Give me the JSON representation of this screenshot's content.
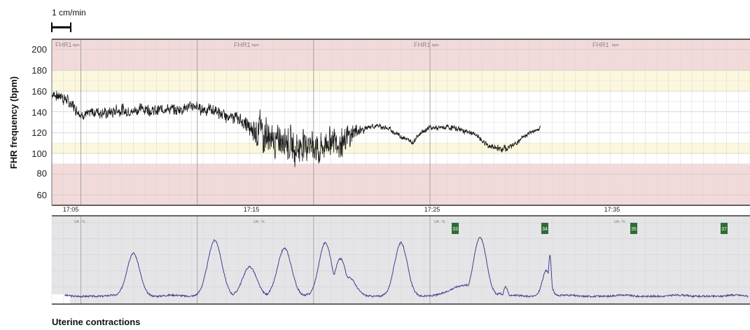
{
  "scale_label": "1 cm/min",
  "fhr_panel": {
    "ylabel": "FHR frequency (bpm)",
    "y_ticks": [
      "60",
      "80",
      "100",
      "120",
      "140",
      "160",
      "180",
      "200"
    ],
    "channel_labels": [
      "FHR1",
      "FHR1",
      "FHR1",
      "FHR1"
    ],
    "unit_labels": [
      "bpm",
      "bpm",
      "bpm",
      "bpm"
    ],
    "time_labels": [
      "17:05",
      "17:15",
      "17:25",
      "17:35"
    ]
  },
  "ua_panel": {
    "channel_labels": [
      "UA - %",
      "UA - %",
      "UA - %",
      "UA - %"
    ],
    "markers": [
      "33",
      "34",
      "35",
      "37"
    ]
  },
  "bottom_label": "Uterine contractions",
  "colors": {
    "fhr_trace": "#1a1a1a",
    "ua_trace": "#3f3f8f",
    "red_band": "#f3dada",
    "yellow_band": "#fbf7dc",
    "ua_background": "#e5e5e8",
    "marker": "#2f6b33"
  },
  "chart_data": [
    {
      "type": "line",
      "title": "",
      "ylabel": "FHR frequency (bpm)",
      "ylim": [
        50,
        210
      ],
      "x_unit": "minutes",
      "xlim": [
        15,
        75
      ],
      "x_tick_values": [
        17.5,
        27.5,
        37.5,
        47.5
      ],
      "x_tick_labels": [
        "17:05",
        "17:15",
        "17:25",
        "17:35"
      ],
      "bands": [
        {
          "from": 180,
          "to": 210,
          "color": "red"
        },
        {
          "from": 160,
          "to": 180,
          "color": "yellow"
        },
        {
          "from": 100,
          "to": 110,
          "color": "yellow"
        },
        {
          "from": 50,
          "to": 90,
          "color": "red"
        }
      ],
      "series": [
        {
          "baseline_x": [
            15.0,
            15.8,
            16.5,
            17.5,
            20.0,
            22.5,
            25.0,
            27.5,
            30.0,
            31.5,
            33.0,
            35.0,
            36.5,
            38.0,
            38.5,
            40.0,
            42.0,
            43.0,
            44.0,
            45.0,
            46.0,
            46.5,
            47.5,
            48.5,
            50.0,
            51.5,
            52.5,
            53.2,
            54.0,
            55.0,
            56.0,
            57.0
          ],
          "baseline_y": [
            156,
            157,
            148,
            138,
            140,
            142,
            142,
            145,
            137,
            130,
            118,
            110,
            108,
            106,
            108,
            113,
            125,
            126,
            124,
            116,
            111,
            118,
            125,
            125,
            124,
            117,
            108,
            104,
            105,
            110,
            120,
            124
          ],
          "variability": [
            5,
            8,
            7,
            6,
            7,
            7,
            6,
            7,
            7,
            8,
            24,
            20,
            20,
            20,
            20,
            18,
            3,
            3,
            3,
            3,
            3,
            3,
            3,
            3,
            3,
            3,
            4,
            4,
            4,
            3,
            3,
            3
          ]
        }
      ]
    },
    {
      "type": "line",
      "title": "",
      "ylabel": "",
      "ylim": [
        0,
        100
      ],
      "x_unit": "minutes",
      "xlim": [
        15,
        75
      ],
      "peaks": [
        {
          "x": 22.0,
          "y": 62,
          "width": 0.55
        },
        {
          "x": 27.2,
          "y": 6,
          "width": 0.06
        },
        {
          "x": 29.0,
          "y": 78,
          "width": 0.6
        },
        {
          "x": 32.0,
          "y": 45,
          "width": 0.6
        },
        {
          "x": 33.0,
          "y": 12,
          "width": 0.5
        },
        {
          "x": 35.0,
          "y": 68,
          "width": 0.6
        },
        {
          "x": 37.5,
          "y": 12,
          "width": 0.5
        },
        {
          "x": 38.5,
          "y": 75,
          "width": 0.55
        },
        {
          "x": 39.8,
          "y": 55,
          "width": 0.5
        },
        {
          "x": 40.5,
          "y": 32,
          "width": 0.6
        },
        {
          "x": 41.5,
          "y": 12,
          "width": 0.3
        },
        {
          "x": 45.0,
          "y": 75,
          "width": 0.55
        },
        {
          "x": 50.5,
          "y": 22,
          "width": 1.2
        },
        {
          "x": 51.8,
          "y": 82,
          "width": 0.55
        },
        {
          "x": 53.5,
          "y": 12,
          "width": 0.15
        },
        {
          "x": 54.0,
          "y": 20,
          "width": 0.15
        },
        {
          "x": 57.5,
          "y": 40,
          "width": 0.35
        },
        {
          "x": 57.8,
          "y": 60,
          "width": 0.12
        }
      ],
      "baseline": 8,
      "markers": [
        {
          "x": 38.2,
          "label": "33"
        },
        {
          "x": 44.7,
          "label": "34"
        },
        {
          "x": 50.4,
          "label": "35"
        },
        {
          "x": 56.8,
          "label": "37"
        }
      ]
    }
  ]
}
